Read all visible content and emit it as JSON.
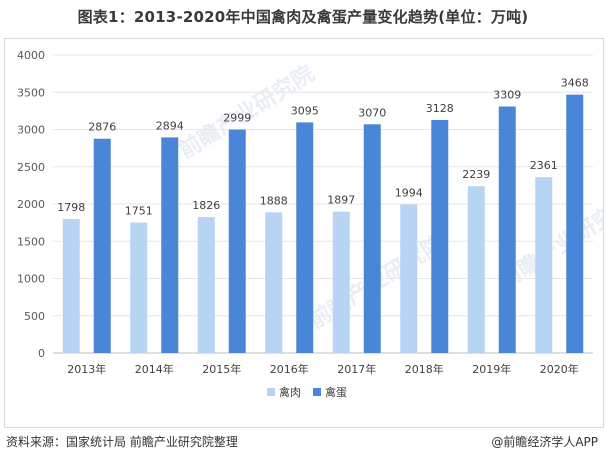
{
  "title": "图表1：2013-2020年中国禽肉及禽蛋产量变化趋势(单位：万吨)",
  "footer": {
    "source": "资料来源：国家统计局 前瞻产业研究院整理",
    "brand": "@前瞻经济学人APP"
  },
  "watermark": "前瞻产业研究院",
  "colors": {
    "series1": "#b7d4f4",
    "series2": "#4a86d8",
    "grid": "#e6e6e6",
    "axis": "#bfbfbf"
  },
  "chart_data": {
    "type": "bar",
    "categories": [
      "2013年",
      "2014年",
      "2015年",
      "2016年",
      "2017年",
      "2018年",
      "2019年",
      "2020年"
    ],
    "series": [
      {
        "name": "禽肉",
        "values": [
          1798,
          1751,
          1826,
          1888,
          1897,
          1994,
          2239,
          2361
        ]
      },
      {
        "name": "禽蛋",
        "values": [
          2876,
          2894,
          2999,
          3095,
          3070,
          3128,
          3309,
          3468
        ]
      }
    ],
    "ylim": [
      0,
      4000
    ],
    "yticks": [
      0,
      500,
      1000,
      1500,
      2000,
      2500,
      3000,
      3500,
      4000
    ],
    "grid": true,
    "legend_position": "bottom-center"
  }
}
